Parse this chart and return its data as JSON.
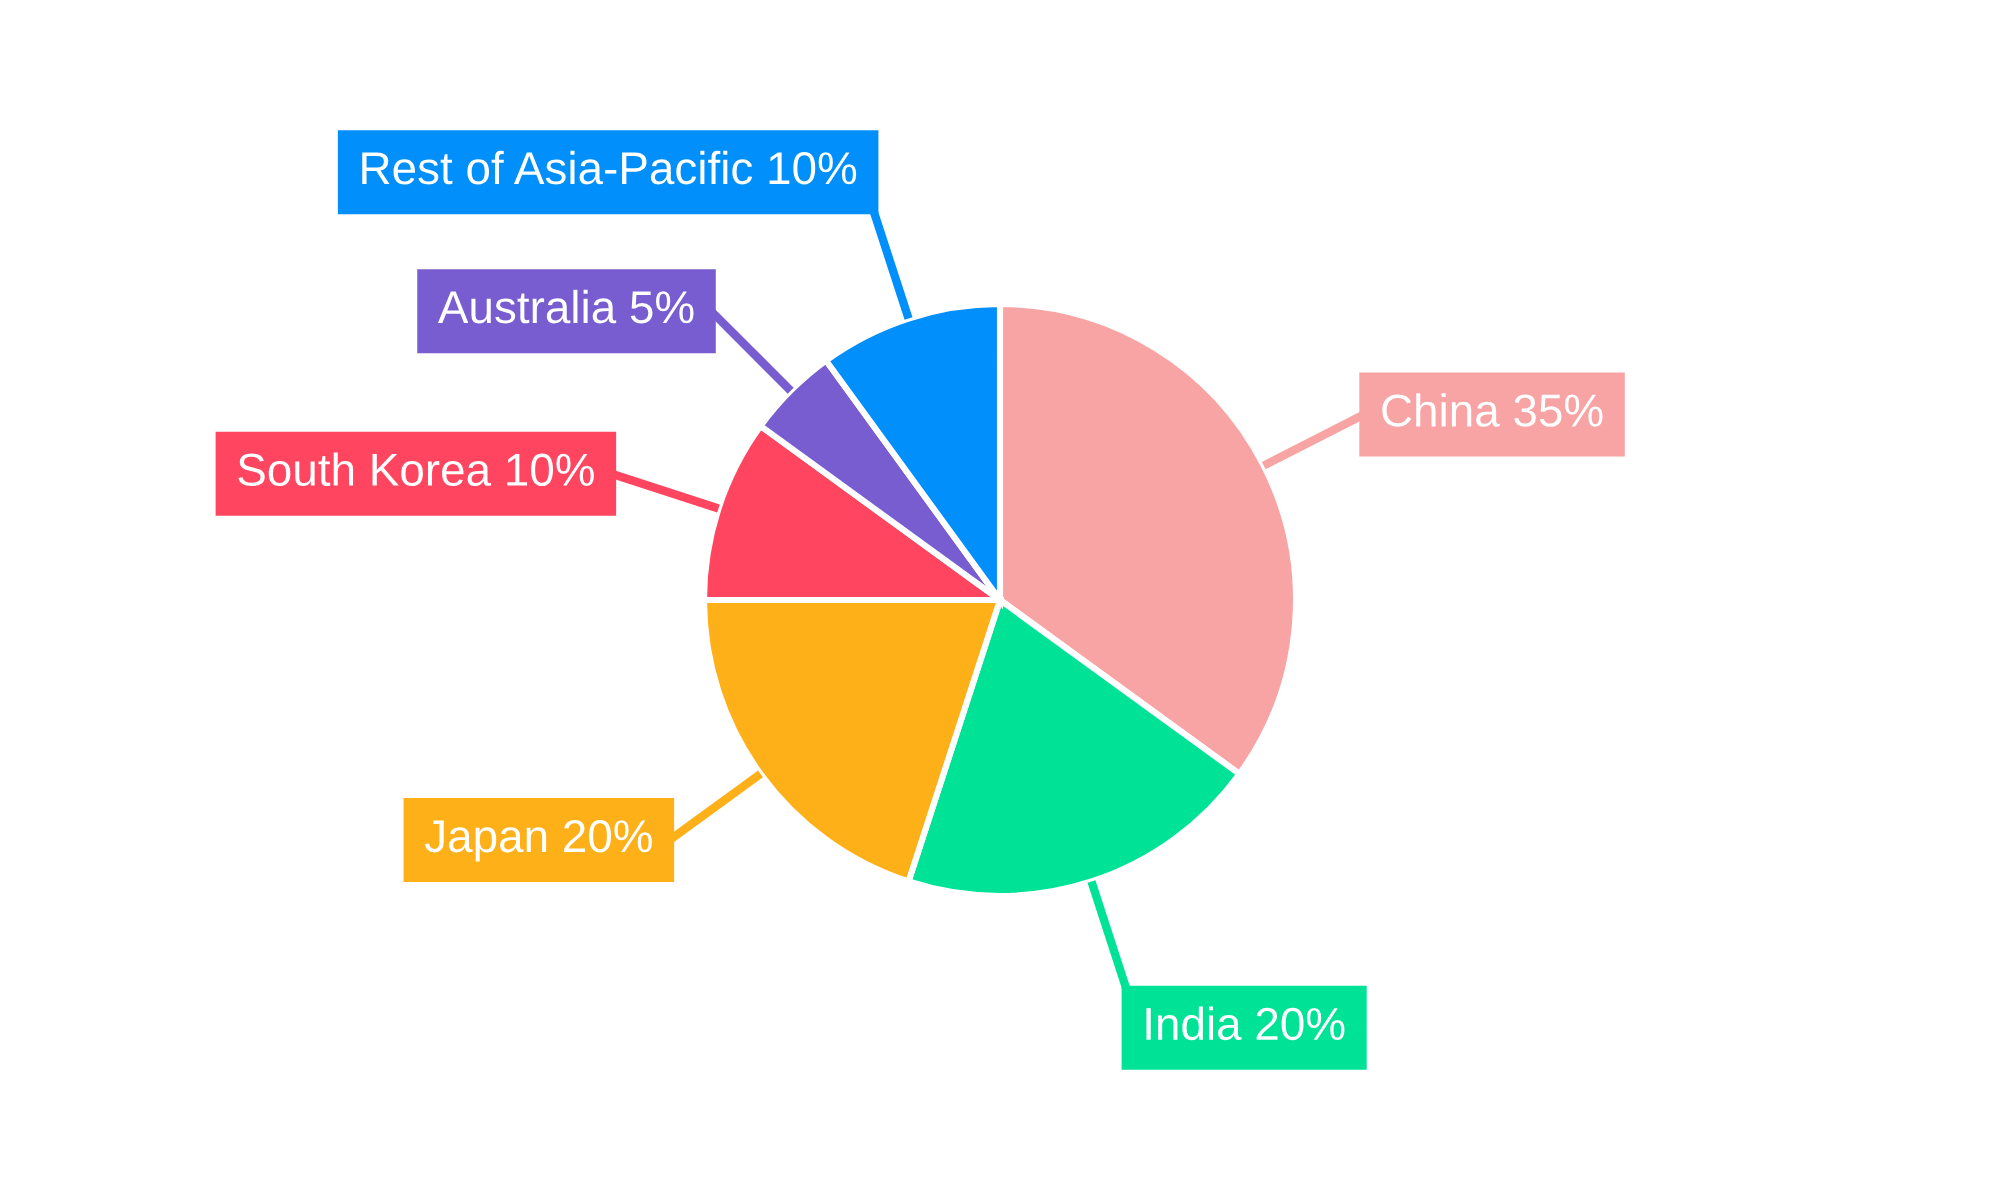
{
  "chart_data": {
    "type": "pie",
    "categories": [
      "China",
      "India",
      "Japan",
      "South Korea",
      "Australia",
      "Rest of Asia-Pacific"
    ],
    "values": [
      35,
      20,
      20,
      10,
      5,
      10
    ],
    "colors": [
      "#f8a3a4",
      "#00e396",
      "#feb019",
      "#ff4560",
      "#775dd0",
      "#008ffb"
    ],
    "value_labels": [
      "35%",
      "20%",
      "20%",
      "10%",
      "5%",
      "10%"
    ]
  }
}
